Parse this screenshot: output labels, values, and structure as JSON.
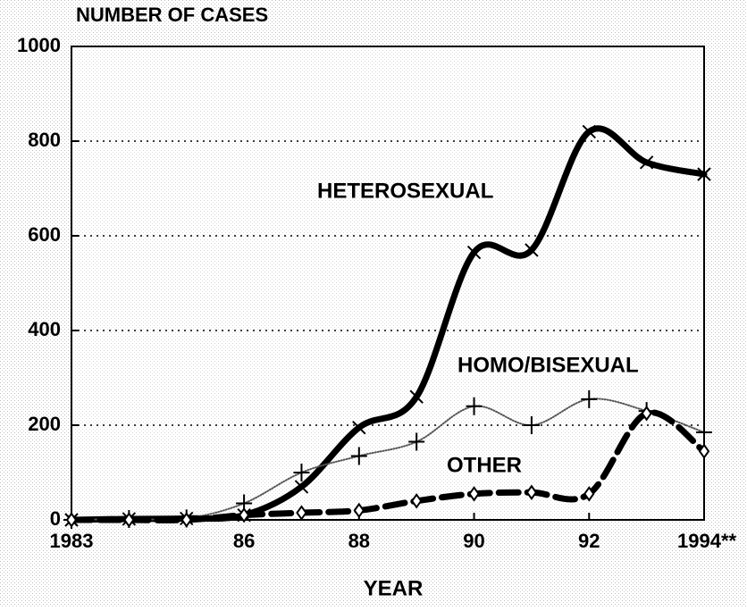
{
  "chart_data": {
    "type": "line",
    "title": "NUMBER OF CASES",
    "x_label": "YEAR",
    "x": [
      1983,
      1984,
      1985,
      1986,
      1987,
      1988,
      1989,
      1990,
      1991,
      1992,
      1993,
      1994
    ],
    "series": [
      {
        "name": "HETEROSEXUAL",
        "color": "#000000",
        "marker": "x",
        "line_style": "solid",
        "values": [
          0,
          2,
          3,
          10,
          70,
          195,
          260,
          565,
          570,
          820,
          755,
          730
        ]
      },
      {
        "name": "HOMO/BISEXUAL",
        "color": "#555555",
        "marker": "plus",
        "line_style": "dotted",
        "values": [
          0,
          2,
          3,
          35,
          100,
          135,
          165,
          240,
          200,
          255,
          230,
          185
        ]
      },
      {
        "name": "OTHER",
        "color": "#000000",
        "marker": "diamond",
        "line_style": "dashed",
        "values": [
          0,
          0,
          0,
          10,
          15,
          20,
          40,
          55,
          58,
          55,
          225,
          145
        ]
      }
    ],
    "xlim": [
      1983,
      1994
    ],
    "xticks": [
      1983,
      {
        "value": 1986,
        "label": "86"
      },
      {
        "value": 1988,
        "label": "88"
      },
      {
        "value": 1990,
        "label": "90"
      },
      {
        "value": 1992,
        "label": "92"
      },
      {
        "value": 1994,
        "label": "1994**"
      }
    ],
    "ylim": [
      0,
      1000
    ],
    "yticks": [
      0,
      200,
      400,
      600,
      800,
      1000
    ],
    "grid": true
  }
}
